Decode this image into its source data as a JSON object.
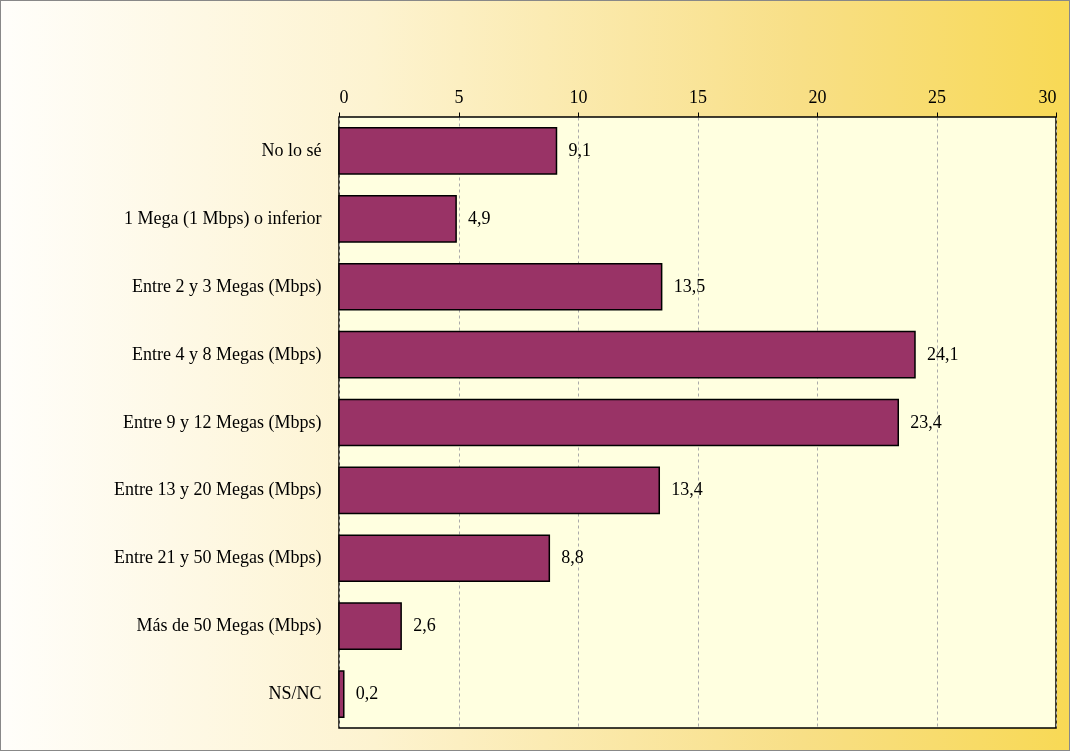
{
  "chart_data": {
    "type": "bar",
    "orientation": "horizontal",
    "categories": [
      "No lo sé",
      "1 Mega (1 Mbps) o inferior",
      "Entre 2 y 3 Megas (Mbps)",
      "Entre 4 y 8 Megas (Mbps)",
      "Entre 9 y 12 Megas (Mbps)",
      "Entre 13 y 20 Megas (Mbps)",
      "Entre 21 y 50 Megas (Mbps)",
      "Más de 50 Megas (Mbps)",
      "NS/NC"
    ],
    "values": [
      9.1,
      4.9,
      13.5,
      24.1,
      23.4,
      13.4,
      8.8,
      2.6,
      0.2
    ],
    "value_labels": [
      "9,1",
      "4,9",
      "13,5",
      "24,1",
      "23,4",
      "13,4",
      "8,8",
      "2,6",
      "0,2"
    ],
    "color": "#993366",
    "xlim": [
      0,
      30
    ],
    "xticks": [
      0,
      5,
      10,
      15,
      20,
      25,
      30
    ],
    "grid": "x"
  }
}
